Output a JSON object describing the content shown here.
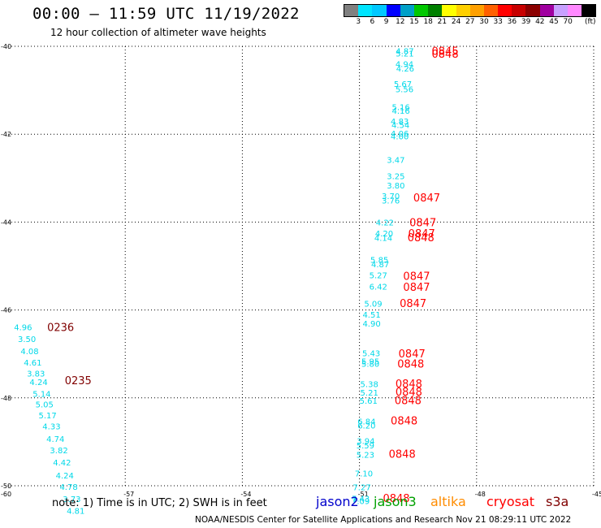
{
  "header": {
    "title": "00:00 — 11:59 UTC 11/19/2022",
    "subtitle": "12 hour collection of altimeter wave heights"
  },
  "colorbar": {
    "colors": [
      "#808080",
      "#00e5ff",
      "#00c8ff",
      "#0000ff",
      "#00a0c8",
      "#00c800",
      "#008000",
      "#ffff00",
      "#ffd000",
      "#ffa000",
      "#ff6000",
      "#ff0000",
      "#c80000",
      "#8b0000",
      "#a000a0",
      "#c8a0ff",
      "#ff88ff",
      "#000000"
    ],
    "labels": [
      "3",
      "6",
      "9",
      "12",
      "15",
      "18",
      "21",
      "24",
      "27",
      "30",
      "33",
      "36",
      "39",
      "42",
      "45",
      "70",
      "(ft)"
    ]
  },
  "note": "note:  1) Time is in UTC;  2) SWH is in feet",
  "satellites": [
    {
      "name": "jason2",
      "color": "#0000cc"
    },
    {
      "name": "jason3",
      "color": "#00a000"
    },
    {
      "name": "altika",
      "color": "#ff8c00"
    },
    {
      "name": "cryosat",
      "color": "#ff0000"
    },
    {
      "name": "s3a",
      "color": "#800000"
    }
  ],
  "footer": "NOAA/NESDIS Center for Satellite Applications and Research    Nov 21 08:29:11 UTC 2022",
  "chart_data": {
    "type": "scatter",
    "xlim": [
      -60,
      -45
    ],
    "ylim": [
      -50,
      -40
    ],
    "x_ticks": [
      "-57",
      "-54",
      "-51",
      "-48",
      "-45"
    ],
    "x_tick_values": [
      -57,
      -54,
      -51,
      -48,
      -45
    ],
    "x_edge_label": "-60",
    "y_ticks": [
      "-40",
      "-42",
      "-44",
      "-46",
      "-48",
      "-50"
    ],
    "y_tick_values": [
      -40,
      -42,
      -44,
      -46,
      -48,
      -50
    ],
    "grid": true,
    "wave_color": "#00d8e8",
    "time_colors": {
      "cryosat": "#ff0000",
      "s3a": "#800000"
    },
    "wave_heights": [
      {
        "label": "4.87",
        "lon": -50.07,
        "lat": -40.1
      },
      {
        "label": "5.21",
        "lon": -50.07,
        "lat": -40.16
      },
      {
        "label": "4.94",
        "lon": -50.08,
        "lat": -40.4
      },
      {
        "label": "4.26",
        "lon": -50.06,
        "lat": -40.5
      },
      {
        "label": "5.67",
        "lon": -50.12,
        "lat": -40.85
      },
      {
        "label": "5.56",
        "lon": -50.08,
        "lat": -40.97
      },
      {
        "label": "5.16",
        "lon": -50.17,
        "lat": -41.38
      },
      {
        "label": "4.16",
        "lon": -50.17,
        "lat": -41.46
      },
      {
        "label": "4.83",
        "lon": -50.2,
        "lat": -41.7
      },
      {
        "label": "4.54",
        "lon": -50.18,
        "lat": -41.78
      },
      {
        "label": "4.06",
        "lon": -50.2,
        "lat": -41.98
      },
      {
        "label": "4.00",
        "lon": -50.2,
        "lat": -42.04
      },
      {
        "label": "3.47",
        "lon": -50.3,
        "lat": -42.58
      },
      {
        "label": "3.25",
        "lon": -50.3,
        "lat": -42.95
      },
      {
        "label": "3.80",
        "lon": -50.3,
        "lat": -43.16
      },
      {
        "label": "3.70",
        "lon": -50.43,
        "lat": -43.4
      },
      {
        "label": "3.76",
        "lon": -50.43,
        "lat": -43.5
      },
      {
        "label": "4.22",
        "lon": -50.58,
        "lat": -44.0
      },
      {
        "label": "4.20",
        "lon": -50.6,
        "lat": -44.25
      },
      {
        "label": "4.14",
        "lon": -50.62,
        "lat": -44.35
      },
      {
        "label": "5.85",
        "lon": -50.72,
        "lat": -44.85
      },
      {
        "label": "4.87",
        "lon": -50.7,
        "lat": -44.95
      },
      {
        "label": "5.27",
        "lon": -50.75,
        "lat": -45.2
      },
      {
        "label": "6.42",
        "lon": -50.75,
        "lat": -45.46
      },
      {
        "label": "5.09",
        "lon": -50.88,
        "lat": -45.85
      },
      {
        "label": "4.51",
        "lon": -50.92,
        "lat": -46.1
      },
      {
        "label": "4.90",
        "lon": -50.92,
        "lat": -46.3
      },
      {
        "label": "5.43",
        "lon": -50.93,
        "lat": -46.98
      },
      {
        "label": "5.95",
        "lon": -50.95,
        "lat": -47.16
      },
      {
        "label": "5.80",
        "lon": -50.95,
        "lat": -47.22
      },
      {
        "label": "5.38",
        "lon": -50.98,
        "lat": -47.68
      },
      {
        "label": "5.21",
        "lon": -50.98,
        "lat": -47.87
      },
      {
        "label": "5.61",
        "lon": -51.0,
        "lat": -48.06
      },
      {
        "label": "6.84",
        "lon": -51.05,
        "lat": -48.53
      },
      {
        "label": "6.20",
        "lon": -51.05,
        "lat": -48.62
      },
      {
        "label": "3.94",
        "lon": -51.07,
        "lat": -48.97
      },
      {
        "label": "5.59",
        "lon": -51.08,
        "lat": -49.08
      },
      {
        "label": "5.23",
        "lon": -51.08,
        "lat": -49.29
      },
      {
        "label": "7.10",
        "lon": -51.12,
        "lat": -49.71
      },
      {
        "label": "7.27",
        "lon": -51.17,
        "lat": -50.03
      },
      {
        "label": "7.43",
        "lon": -51.2,
        "lat": -50.29
      },
      {
        "label": "7.09",
        "lon": -51.2,
        "lat": -50.34
      },
      {
        "label": "4.96",
        "lon": -59.85,
        "lat": -46.39
      },
      {
        "label": "3.50",
        "lon": -59.75,
        "lat": -46.65
      },
      {
        "label": "4.08",
        "lon": -59.68,
        "lat": -46.93
      },
      {
        "label": "4.61",
        "lon": -59.6,
        "lat": -47.19
      },
      {
        "label": "3.83",
        "lon": -59.52,
        "lat": -47.44
      },
      {
        "label": "4.24",
        "lon": -59.45,
        "lat": -47.63
      },
      {
        "label": "5.14",
        "lon": -59.37,
        "lat": -47.9
      },
      {
        "label": "5.05",
        "lon": -59.3,
        "lat": -48.14
      },
      {
        "label": "5.17",
        "lon": -59.22,
        "lat": -48.39
      },
      {
        "label": "4.33",
        "lon": -59.12,
        "lat": -48.64
      },
      {
        "label": "4.74",
        "lon": -59.02,
        "lat": -48.93
      },
      {
        "label": "3.82",
        "lon": -58.93,
        "lat": -49.19
      },
      {
        "label": "4.42",
        "lon": -58.85,
        "lat": -49.46
      },
      {
        "label": "4.24",
        "lon": -58.78,
        "lat": -49.76
      },
      {
        "label": "4.78",
        "lon": -58.68,
        "lat": -50.02
      },
      {
        "label": "3.73",
        "lon": -58.6,
        "lat": -50.3
      },
      {
        "label": "4.81",
        "lon": -58.5,
        "lat": -50.56
      }
    ],
    "pass_times": [
      {
        "label": "0845",
        "lon": -49.15,
        "lat": -40.1,
        "sat": "cryosat"
      },
      {
        "label": "0848",
        "lon": -49.15,
        "lat": -40.17,
        "sat": "cryosat"
      },
      {
        "label": "0847",
        "lon": -49.62,
        "lat": -43.44,
        "sat": "cryosat"
      },
      {
        "label": "0847",
        "lon": -49.72,
        "lat": -44.0,
        "sat": "cryosat"
      },
      {
        "label": "0847",
        "lon": -49.75,
        "lat": -44.25,
        "sat": "cryosat"
      },
      {
        "label": "0848",
        "lon": -49.77,
        "lat": -44.34,
        "sat": "cryosat"
      },
      {
        "label": "0847",
        "lon": -49.88,
        "lat": -45.22,
        "sat": "cryosat"
      },
      {
        "label": "0847",
        "lon": -49.88,
        "lat": -45.47,
        "sat": "cryosat"
      },
      {
        "label": "0847",
        "lon": -49.97,
        "lat": -45.84,
        "sat": "cryosat"
      },
      {
        "label": "0847",
        "lon": -50.0,
        "lat": -46.99,
        "sat": "cryosat"
      },
      {
        "label": "0848",
        "lon": -50.03,
        "lat": -47.22,
        "sat": "cryosat"
      },
      {
        "label": "0848",
        "lon": -50.08,
        "lat": -47.67,
        "sat": "cryosat"
      },
      {
        "label": "0848",
        "lon": -50.08,
        "lat": -47.86,
        "sat": "cryosat"
      },
      {
        "label": "0848",
        "lon": -50.1,
        "lat": -48.05,
        "sat": "cryosat"
      },
      {
        "label": "0848",
        "lon": -50.2,
        "lat": -48.51,
        "sat": "cryosat"
      },
      {
        "label": "0848",
        "lon": -50.25,
        "lat": -49.27,
        "sat": "cryosat"
      },
      {
        "label": "0848",
        "lon": -50.4,
        "lat": -50.28,
        "sat": "cryosat"
      },
      {
        "label": "0236",
        "lon": -59.0,
        "lat": -46.39,
        "sat": "s3a"
      },
      {
        "label": "0235",
        "lon": -58.55,
        "lat": -47.6,
        "sat": "s3a"
      }
    ]
  }
}
